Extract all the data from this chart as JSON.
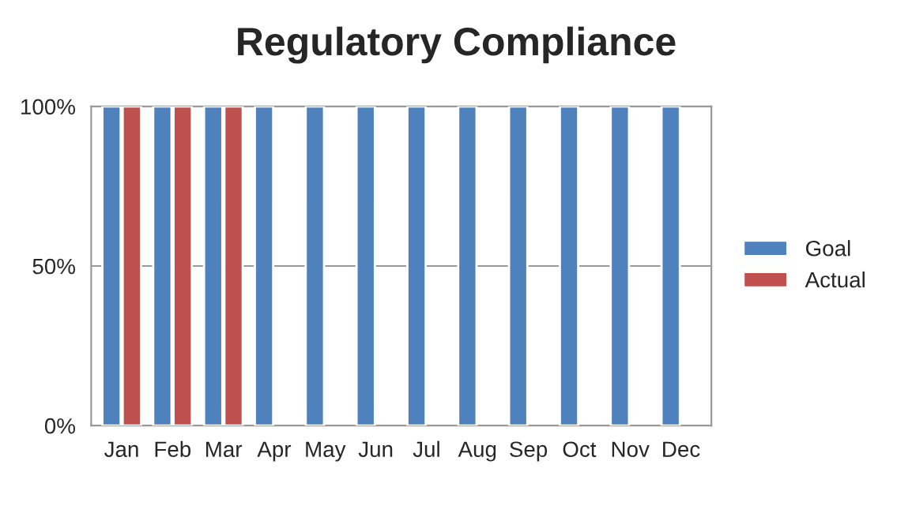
{
  "chart_data": {
    "type": "bar",
    "title": "Regulatory Compliance",
    "categories": [
      "Jan",
      "Feb",
      "Mar",
      "Apr",
      "May",
      "Jun",
      "Jul",
      "Aug",
      "Sep",
      "Oct",
      "Nov",
      "Dec"
    ],
    "series": [
      {
        "name": "Goal",
        "color": "#4f81bd",
        "values": [
          100,
          100,
          100,
          100,
          100,
          100,
          100,
          100,
          100,
          100,
          100,
          100
        ]
      },
      {
        "name": "Actual",
        "color": "#c0504d",
        "values": [
          100,
          100,
          100,
          null,
          null,
          null,
          null,
          null,
          null,
          null,
          null,
          null
        ]
      }
    ],
    "ylim": [
      0,
      100
    ],
    "yticks": [
      {
        "value": 0,
        "label": "0%"
      },
      {
        "value": 50,
        "label": "50%"
      },
      {
        "value": 100,
        "label": "100%"
      }
    ],
    "grid": "y",
    "legend": "right"
  }
}
